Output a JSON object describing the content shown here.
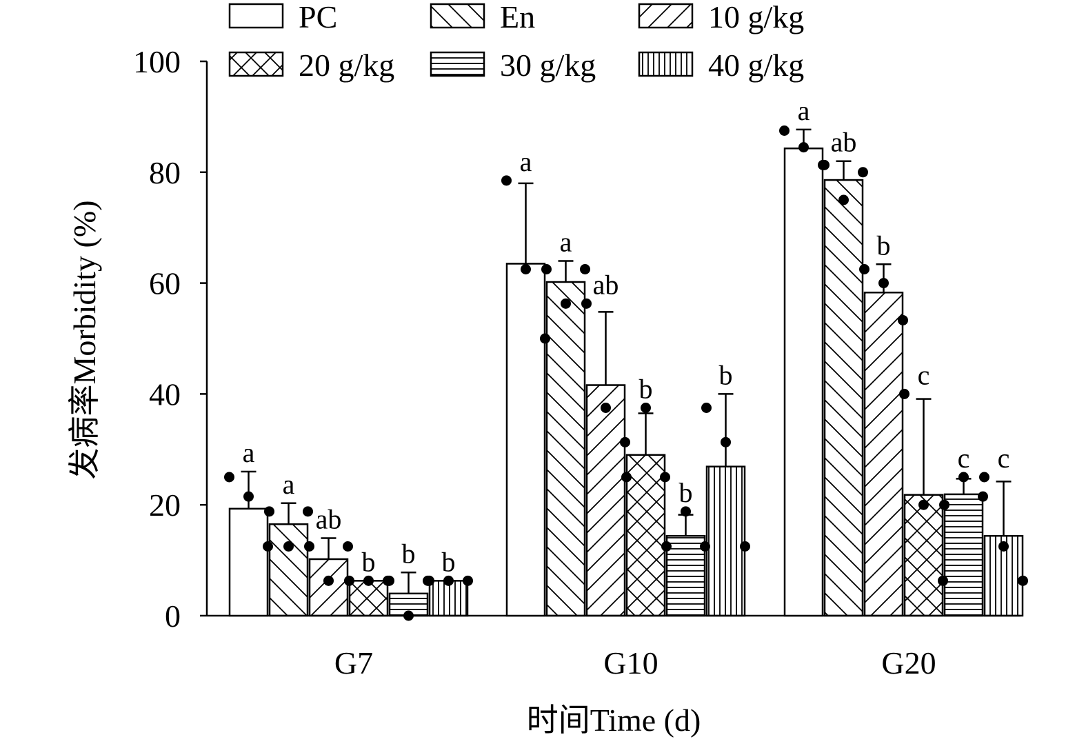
{
  "chart_data": {
    "type": "bar",
    "xlabel": "时间Time (d)",
    "ylabel": "发病率Morbidity (%)",
    "ylim": [
      0,
      100
    ],
    "yticks": [
      "0",
      "20",
      "40",
      "60",
      "80",
      "100"
    ],
    "categories": [
      "G7",
      "G10",
      "G20"
    ],
    "series": [
      {
        "name": "PC",
        "pattern": "none",
        "values": [
          19.3,
          63.5,
          84.3
        ],
        "errors": [
          6.7,
          14.5,
          3.4
        ],
        "points": [
          [
            25,
            21.5,
            12.5
          ],
          [
            78.5,
            62.5,
            50
          ],
          [
            87.5,
            84.5,
            81.3
          ]
        ],
        "labels": [
          "a",
          "a",
          "a"
        ]
      },
      {
        "name": "En",
        "pattern": "back",
        "values": [
          16.5,
          60.2,
          78.6
        ],
        "errors": [
          3.8,
          3.8,
          3.4
        ],
        "points": [
          [
            18.8,
            12.5,
            18.8
          ],
          [
            62.5,
            56.3,
            62.5
          ],
          [
            81.3,
            75,
            80
          ]
        ],
        "labels": [
          "a",
          "a",
          "ab"
        ]
      },
      {
        "name": "10 g/kg",
        "pattern": "fwd",
        "values": [
          10.2,
          41.6,
          58.3
        ],
        "errors": [
          3.8,
          13.2,
          5.1
        ],
        "points": [
          [
            12.5,
            6.3,
            12.5
          ],
          [
            56.3,
            37.5,
            31.3
          ],
          [
            62.5,
            60,
            53.3
          ]
        ],
        "labels": [
          "ab",
          "ab",
          "b"
        ]
      },
      {
        "name": "20 g/kg",
        "pattern": "cross",
        "values": [
          6.3,
          29.0,
          21.8
        ],
        "errors": [
          0,
          7.5,
          17.3
        ],
        "points": [
          [
            6.3,
            6.3,
            6.3
          ],
          [
            25,
            37.5,
            25
          ],
          [
            40,
            20,
            6.3
          ]
        ],
        "labels": [
          "b",
          "b",
          "c"
        ]
      },
      {
        "name": "30 g/kg",
        "pattern": "horiz",
        "values": [
          4.0,
          14.4,
          21.9
        ],
        "errors": [
          3.8,
          3.8,
          2.8
        ],
        "points": [
          [
            6.3,
            0,
            6.3
          ],
          [
            12.5,
            18.8,
            12.5
          ],
          [
            20,
            25,
            21.5
          ]
        ],
        "labels": [
          "b",
          "b",
          "c"
        ]
      },
      {
        "name": "40 g/kg",
        "pattern": "vert",
        "values": [
          6.3,
          26.9,
          14.4
        ],
        "errors": [
          0,
          13.1,
          9.8
        ],
        "points": [
          [
            6.3,
            6.3,
            6.3
          ],
          [
            37.5,
            31.3,
            12.5
          ],
          [
            25,
            12.5,
            6.3
          ]
        ],
        "labels": [
          "b",
          "b",
          "c"
        ]
      }
    ]
  }
}
